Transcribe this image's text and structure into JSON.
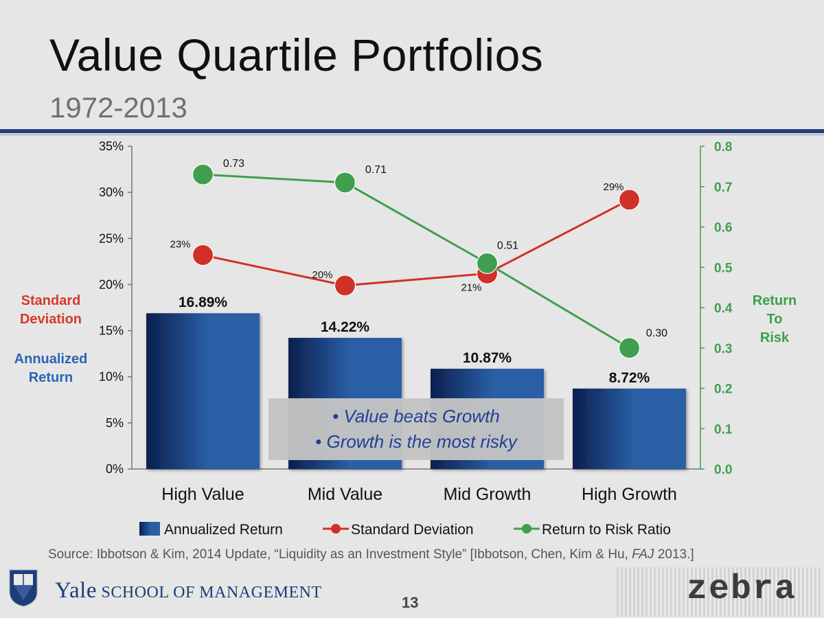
{
  "slide": {
    "title": "Value Quartile Portfolios",
    "subtitle": "1972-2013",
    "callout": [
      "• Value beats Growth",
      "• Growth is the most risky"
    ],
    "side_labels": {
      "standard_deviation": [
        "Standard",
        "Deviation"
      ],
      "annualized_return": [
        "Annualized",
        "Return"
      ],
      "return_to_risk": [
        "Return",
        "To",
        "Risk"
      ]
    },
    "source": "Source: Ibbotson & Kim, 2014 Update, “Liquidity as an Investment Style” [Ibbotson, Chen, Kim & Hu, ",
    "source_italic": "FAJ",
    "source_tail": " 2013.]",
    "footer": {
      "school_big": "Yale",
      "school_small": "SCHOOL OF MANAGEMENT",
      "page_number": "13",
      "logo_text": "zebra"
    }
  },
  "chart_data": {
    "type": "bar",
    "categories": [
      "High Value",
      "Mid Value",
      "Mid Growth",
      "High Growth"
    ],
    "series": [
      {
        "name": "Annualized Return",
        "kind": "bar",
        "axis": "left",
        "values": [
          16.89,
          14.22,
          10.87,
          8.72
        ],
        "labels": [
          "16.89%",
          "14.22%",
          "10.87%",
          "8.72%"
        ],
        "color": "#2a5fa6",
        "color_dark": "#0b1f4e"
      },
      {
        "name": "Standard Deviation",
        "kind": "line",
        "axis": "left",
        "values": [
          23.2,
          19.9,
          21.2,
          29.2
        ],
        "labels": [
          "23%",
          "20%",
          "21%",
          "29%"
        ],
        "color": "#d03028"
      },
      {
        "name": "Return to Risk Ratio",
        "kind": "line",
        "axis": "right",
        "values": [
          0.73,
          0.71,
          0.51,
          0.3
        ],
        "labels": [
          "0.73",
          "0.71",
          "0.51",
          "0.30"
        ],
        "color": "#3f9f4f"
      }
    ],
    "y_left": {
      "min": 0,
      "max": 35,
      "ticks": [
        "0%",
        "5%",
        "10%",
        "15%",
        "20%",
        "25%",
        "30%",
        "35%"
      ],
      "tick_values": [
        0,
        5,
        10,
        15,
        20,
        25,
        30,
        35
      ]
    },
    "y_right": {
      "min": 0,
      "max": 0.8,
      "ticks": [
        "0.0",
        "0.1",
        "0.2",
        "0.3",
        "0.4",
        "0.5",
        "0.6",
        "0.7",
        "0.8"
      ],
      "tick_values": [
        0,
        0.1,
        0.2,
        0.3,
        0.4,
        0.5,
        0.6,
        0.7,
        0.8
      ],
      "color": "#3f9f4f"
    },
    "legend_position": "bottom",
    "grid": false
  }
}
